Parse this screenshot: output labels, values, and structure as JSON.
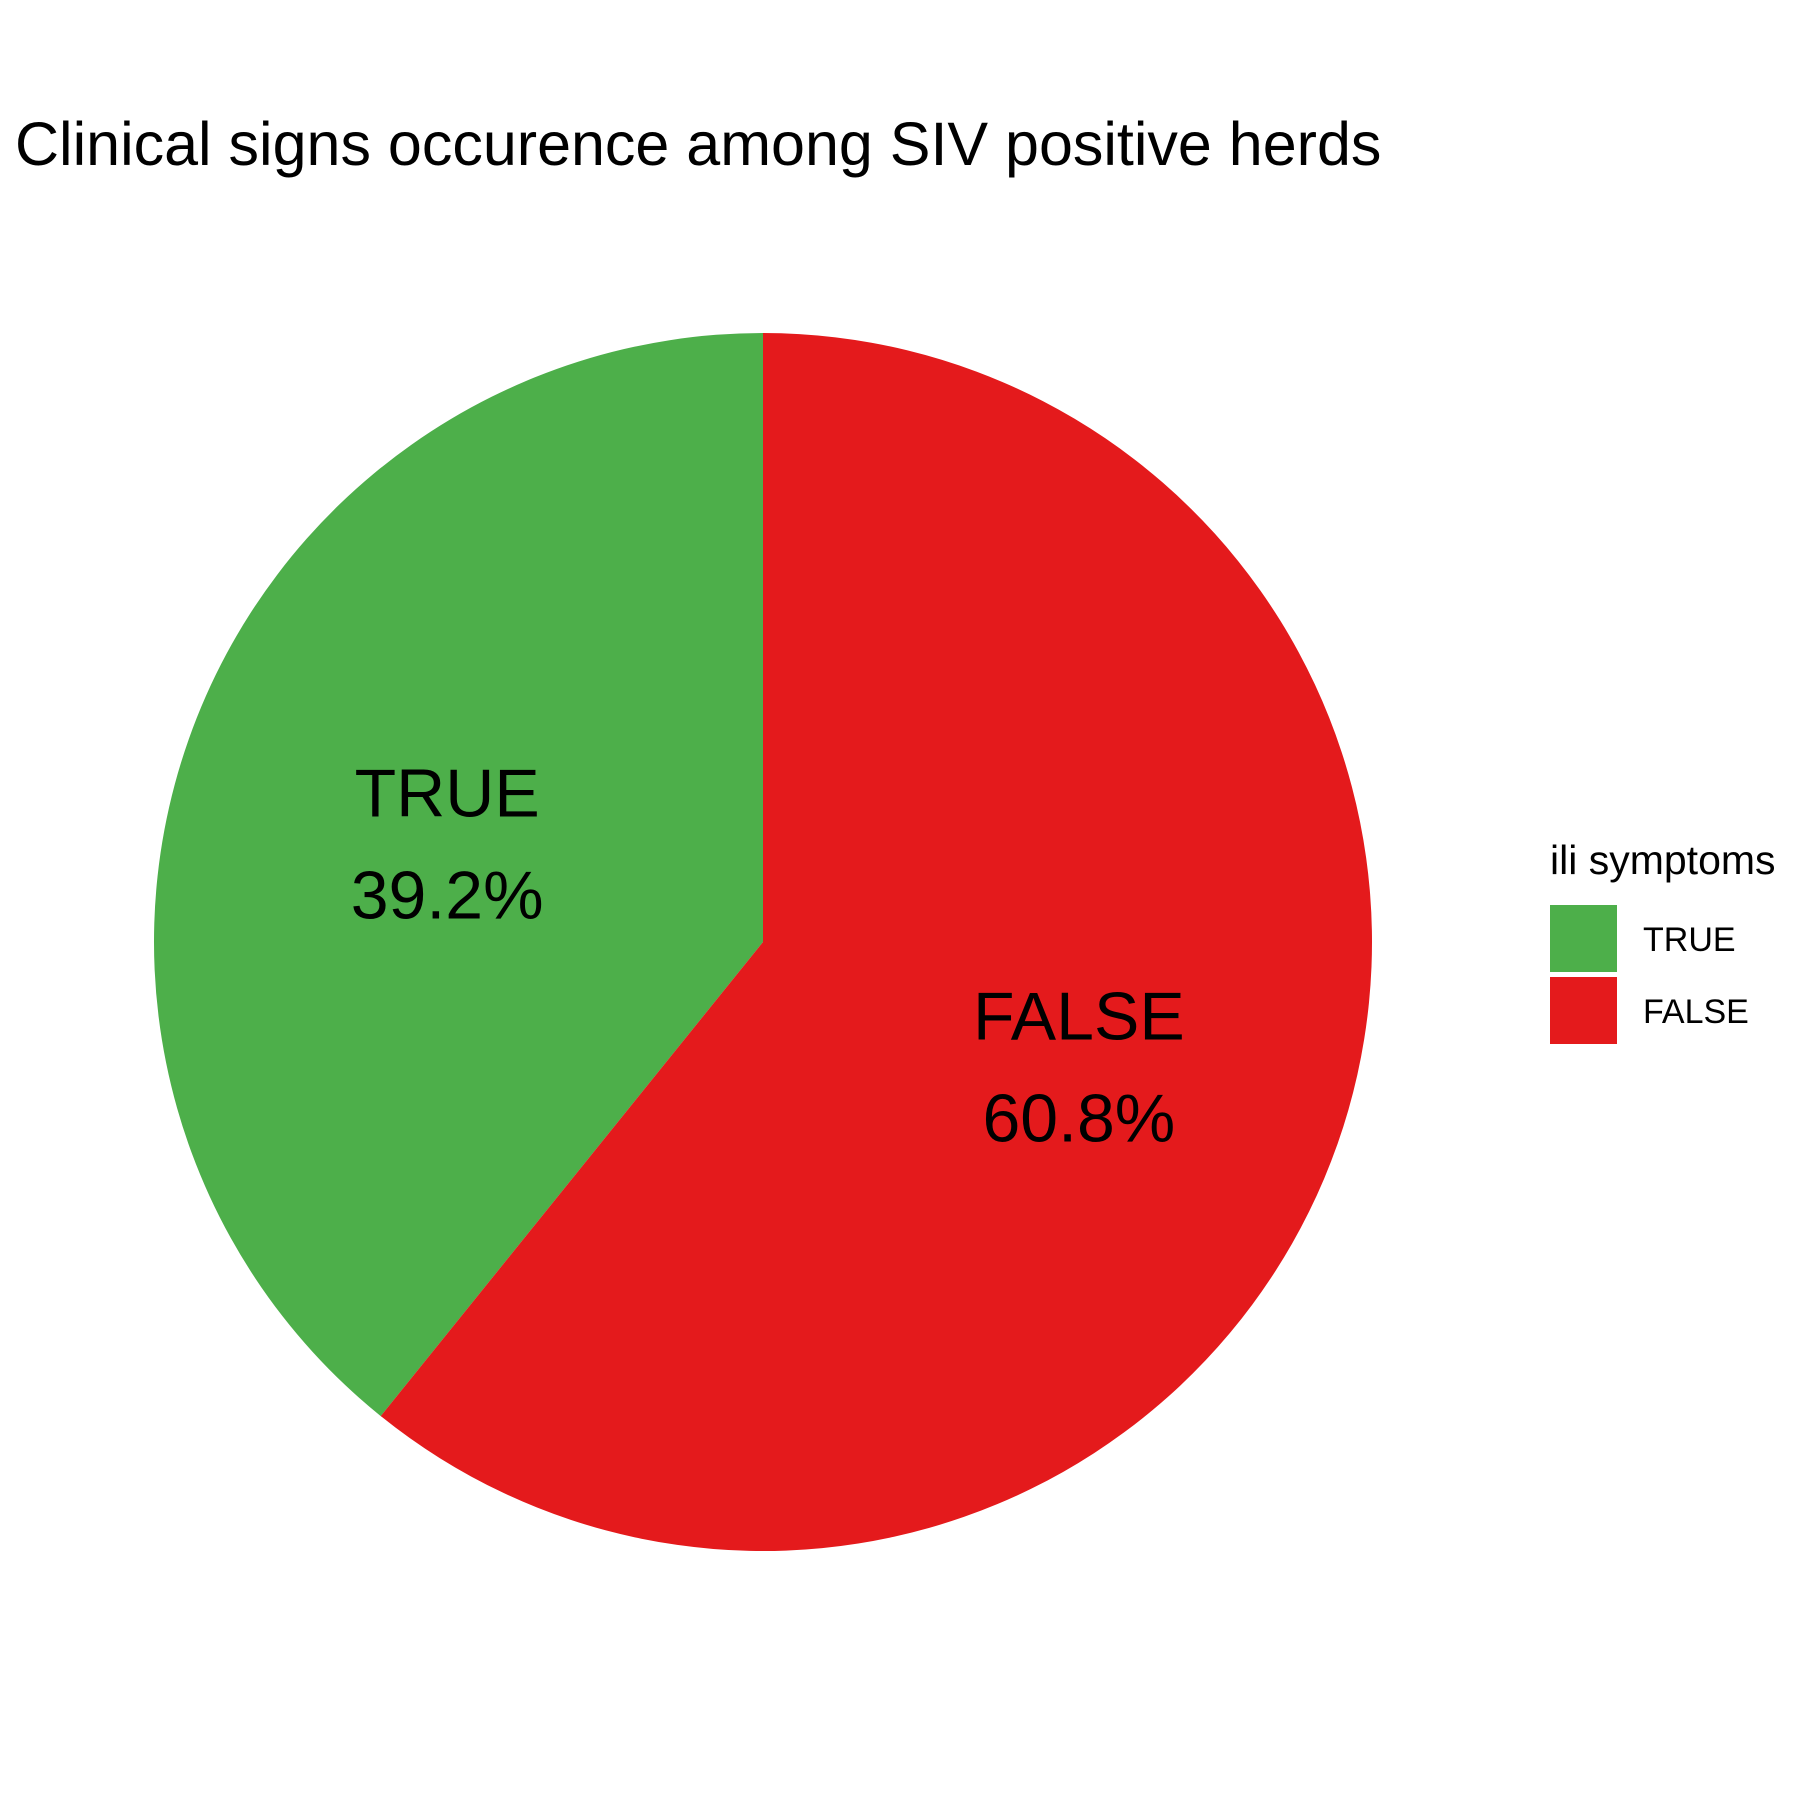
{
  "chart_data": {
    "type": "pie",
    "title": "Clinical signs occurence among SIV positive herds",
    "start_angle": "12 o'clock",
    "direction": "counterclockwise",
    "slices": [
      {
        "label": "TRUE",
        "value": 39.2,
        "percent_label": "39.2%",
        "color": "#4DAF4A"
      },
      {
        "label": "FALSE",
        "value": 60.8,
        "percent_label": "60.8%",
        "color": "#E41A1C"
      }
    ],
    "legend": {
      "title": "ili symptoms",
      "position": "right",
      "items": [
        {
          "label": "TRUE",
          "color": "#4DAF4A"
        },
        {
          "label": "FALSE",
          "color": "#E41A1C"
        }
      ]
    }
  }
}
